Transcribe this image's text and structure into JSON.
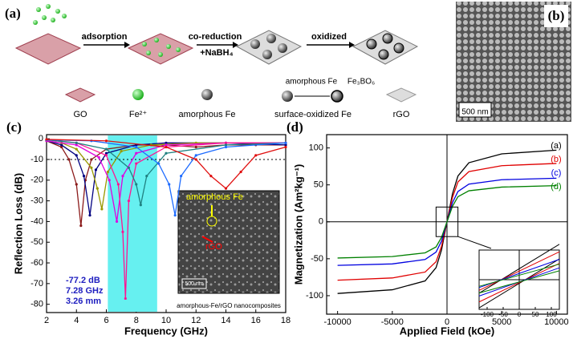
{
  "schematic": {
    "panel": "(a)",
    "steps": [
      "adsorption",
      "co-reduction",
      "+NaBH₄",
      "oxidized"
    ],
    "legend": [
      "GO",
      "Fe²⁺",
      "amorphous Fe",
      "surface-oxidized Fe",
      "rGO",
      "amorphous Fe",
      "Fe₃BO₆"
    ]
  },
  "sem": {
    "panel": "(b)",
    "scale": "500 nm"
  },
  "chart_data": [
    {
      "type": "line",
      "panel": "(c)",
      "xlabel": "Frequency (GHz)",
      "ylabel": "Reflection Loss (dB)",
      "xlim": [
        2,
        18
      ],
      "ylim": [
        -84,
        2
      ],
      "xticks": [
        2,
        4,
        6,
        8,
        10,
        12,
        14,
        16,
        18
      ],
      "yticks": [
        0,
        -10,
        -20,
        -30,
        -40,
        -50,
        -60,
        -70,
        -80
      ],
      "band": [
        6.1,
        9.4
      ],
      "band_color": "#66f0f0",
      "reference": -10,
      "annotations": [
        "-77.2 dB",
        "7.28 GHz",
        "3.26 mm"
      ],
      "inset_texts": [
        "amorphous Fe",
        "rGO",
        "500 nm",
        "amorphous-Fe/rGO nanocomposites"
      ],
      "series": [
        {
          "color": "#8b1a1a",
          "x": [
            2,
            3,
            3.5,
            4,
            4.3,
            4.6,
            5,
            6,
            8,
            10,
            12,
            14,
            16,
            18
          ],
          "values": [
            -1,
            -4,
            -10,
            -22,
            -42,
            -20,
            -10,
            -5,
            -3,
            -3,
            -4,
            -3,
            -3,
            -3
          ]
        },
        {
          "color": "#000080",
          "x": [
            2,
            3,
            4,
            4.5,
            4.9,
            5.3,
            6,
            8,
            10,
            14,
            18
          ],
          "values": [
            -1,
            -3,
            -8,
            -18,
            -37,
            -15,
            -7,
            -3,
            -2,
            -2,
            -3
          ]
        },
        {
          "color": "#999900",
          "x": [
            2,
            3,
            4,
            5,
            5.4,
            5.7,
            6.1,
            7,
            9,
            12,
            18
          ],
          "values": [
            -1,
            -2,
            -5,
            -14,
            -24,
            -34,
            -16,
            -6,
            -3,
            -2,
            -2
          ]
        },
        {
          "color": "#e000e0",
          "x": [
            2,
            4,
            5.5,
            6.2,
            6.7,
            7.1,
            8,
            10,
            14,
            18
          ],
          "values": [
            -1,
            -3,
            -9,
            -20,
            -40,
            -18,
            -7,
            -3,
            -2,
            -2
          ]
        },
        {
          "color": "#ff1493",
          "x": [
            2,
            4,
            6,
            6.8,
            7.1,
            7.28,
            7.5,
            8,
            10,
            14,
            18
          ],
          "values": [
            -0.5,
            -2,
            -8,
            -22,
            -45,
            -77.2,
            -30,
            -12,
            -4,
            -2,
            -2
          ]
        },
        {
          "color": "#208080",
          "x": [
            2,
            4,
            6,
            7.5,
            8,
            8.3,
            8.7,
            10,
            14,
            18
          ],
          "values": [
            -0.5,
            -2,
            -5,
            -14,
            -22,
            -32,
            -18,
            -7,
            -3,
            -2
          ]
        },
        {
          "color": "#1e6cff",
          "x": [
            2,
            5,
            8,
            9.5,
            10.2,
            10.6,
            11,
            12,
            14,
            18
          ],
          "values": [
            -0.5,
            -1,
            -4,
            -12,
            -22,
            -37,
            -18,
            -8,
            -4,
            -2
          ]
        },
        {
          "color": "#e01010",
          "x": [
            2,
            6,
            10,
            12,
            13,
            14,
            15,
            16,
            18
          ],
          "values": [
            -0.3,
            -1,
            -4,
            -10,
            -18,
            -24,
            -16,
            -8,
            -4
          ]
        }
      ]
    },
    {
      "type": "line",
      "panel": "(d)",
      "xlabel": "Applied Field (kOe)",
      "ylabel": "Magnetization (Am²kg⁻¹)",
      "xlim": [
        -11000,
        11000
      ],
      "ylim": [
        -125,
        118
      ],
      "xticks": [
        -10000,
        -5000,
        0,
        5000,
        10000
      ],
      "yticks": [
        -100,
        -50,
        0,
        50,
        100
      ],
      "series": [
        {
          "name": "(a)",
          "color": "#000000",
          "x": [
            -10000,
            -5000,
            -2000,
            -1000,
            -500,
            0,
            500,
            1000,
            2000,
            5000,
            10000
          ],
          "values": [
            -97,
            -92,
            -80,
            -62,
            -38,
            0,
            38,
            62,
            80,
            92,
            97
          ]
        },
        {
          "name": "(b)",
          "color": "#e00000",
          "x": [
            -10000,
            -5000,
            -2000,
            -1000,
            -500,
            0,
            500,
            1000,
            2000,
            5000,
            10000
          ],
          "values": [
            -79,
            -76,
            -68,
            -54,
            -33,
            0,
            33,
            54,
            68,
            76,
            79
          ]
        },
        {
          "name": "(c)",
          "color": "#0000e0",
          "x": [
            -10000,
            -5000,
            -2000,
            -1000,
            -500,
            0,
            500,
            1000,
            2000,
            5000,
            10000
          ],
          "values": [
            -59,
            -57,
            -51,
            -41,
            -26,
            0,
            26,
            41,
            51,
            57,
            59
          ]
        },
        {
          "name": "(d)",
          "color": "#008000",
          "x": [
            -10000,
            -5000,
            -2000,
            -1000,
            -500,
            0,
            500,
            1000,
            2000,
            5000,
            10000
          ],
          "values": [
            -49,
            -47,
            -42,
            -34,
            -21,
            0,
            21,
            34,
            42,
            47,
            49
          ]
        }
      ],
      "inset": {
        "xlim": [
          -125,
          125
        ],
        "ylim": [
          -20,
          20
        ],
        "xticks": [
          -100,
          -50,
          0,
          50,
          100
        ],
        "series": [
          {
            "color": "#000000",
            "x": [
              -125,
              125
            ],
            "values": [
              -19,
              14
            ]
          },
          {
            "color": "#e00000",
            "x": [
              -125,
              125
            ],
            "values": [
              -15,
              11
            ]
          },
          {
            "color": "#0000e0",
            "x": [
              -125,
              125
            ],
            "values": [
              -11,
              8
            ]
          },
          {
            "color": "#008000",
            "x": [
              -125,
              125
            ],
            "values": [
              -9,
              6
            ]
          }
        ]
      }
    }
  ]
}
